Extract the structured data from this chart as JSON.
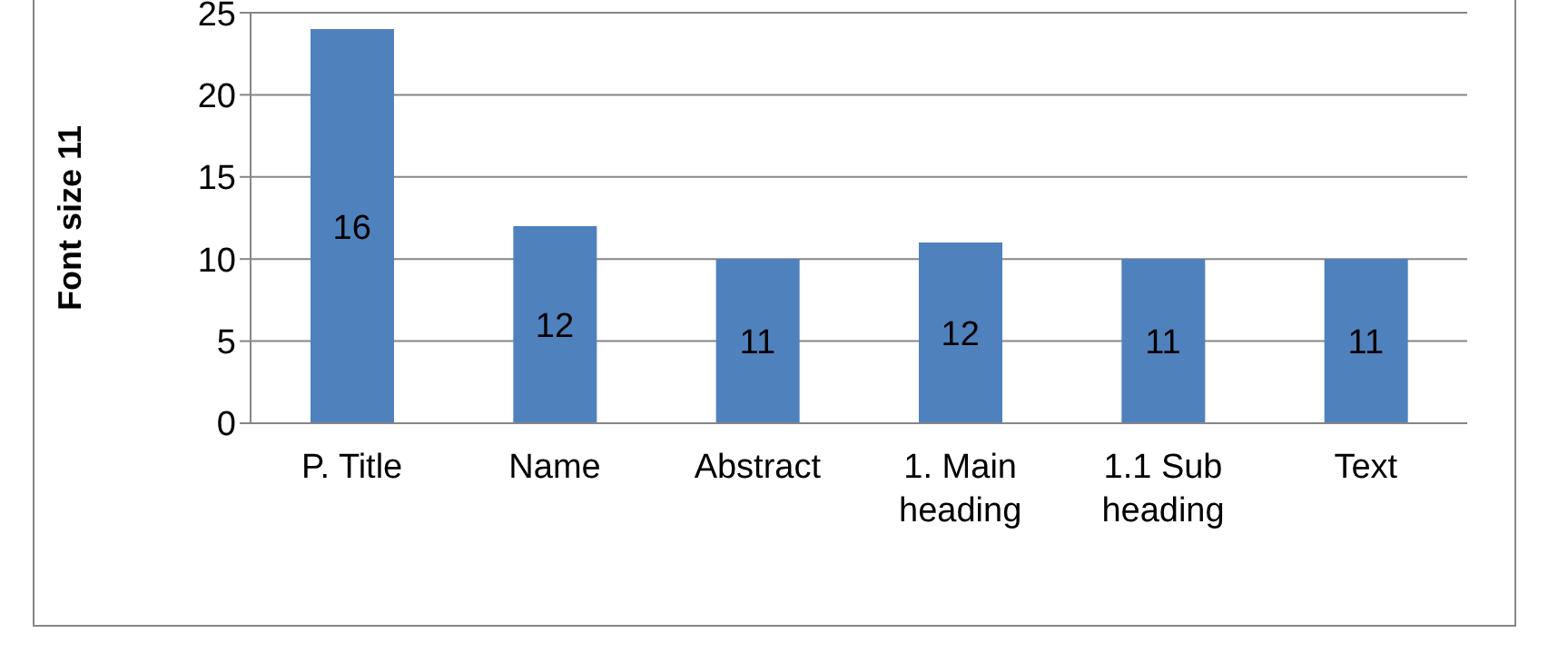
{
  "chart_data": {
    "type": "bar",
    "ylabel": "Font size 11",
    "categories": [
      "P. Title",
      "Name",
      "Abstract",
      "1. Main heading",
      "1.1 Sub heading",
      "Text"
    ],
    "values": [
      24,
      12,
      10,
      11,
      10,
      10
    ],
    "annotations": [
      "16",
      "12",
      "11",
      "12",
      "11",
      "11"
    ],
    "color": "#4f81bd",
    "ylim": [
      0,
      25
    ],
    "yticks": [
      0,
      5,
      10,
      15,
      20,
      25
    ],
    "grid": "y"
  }
}
